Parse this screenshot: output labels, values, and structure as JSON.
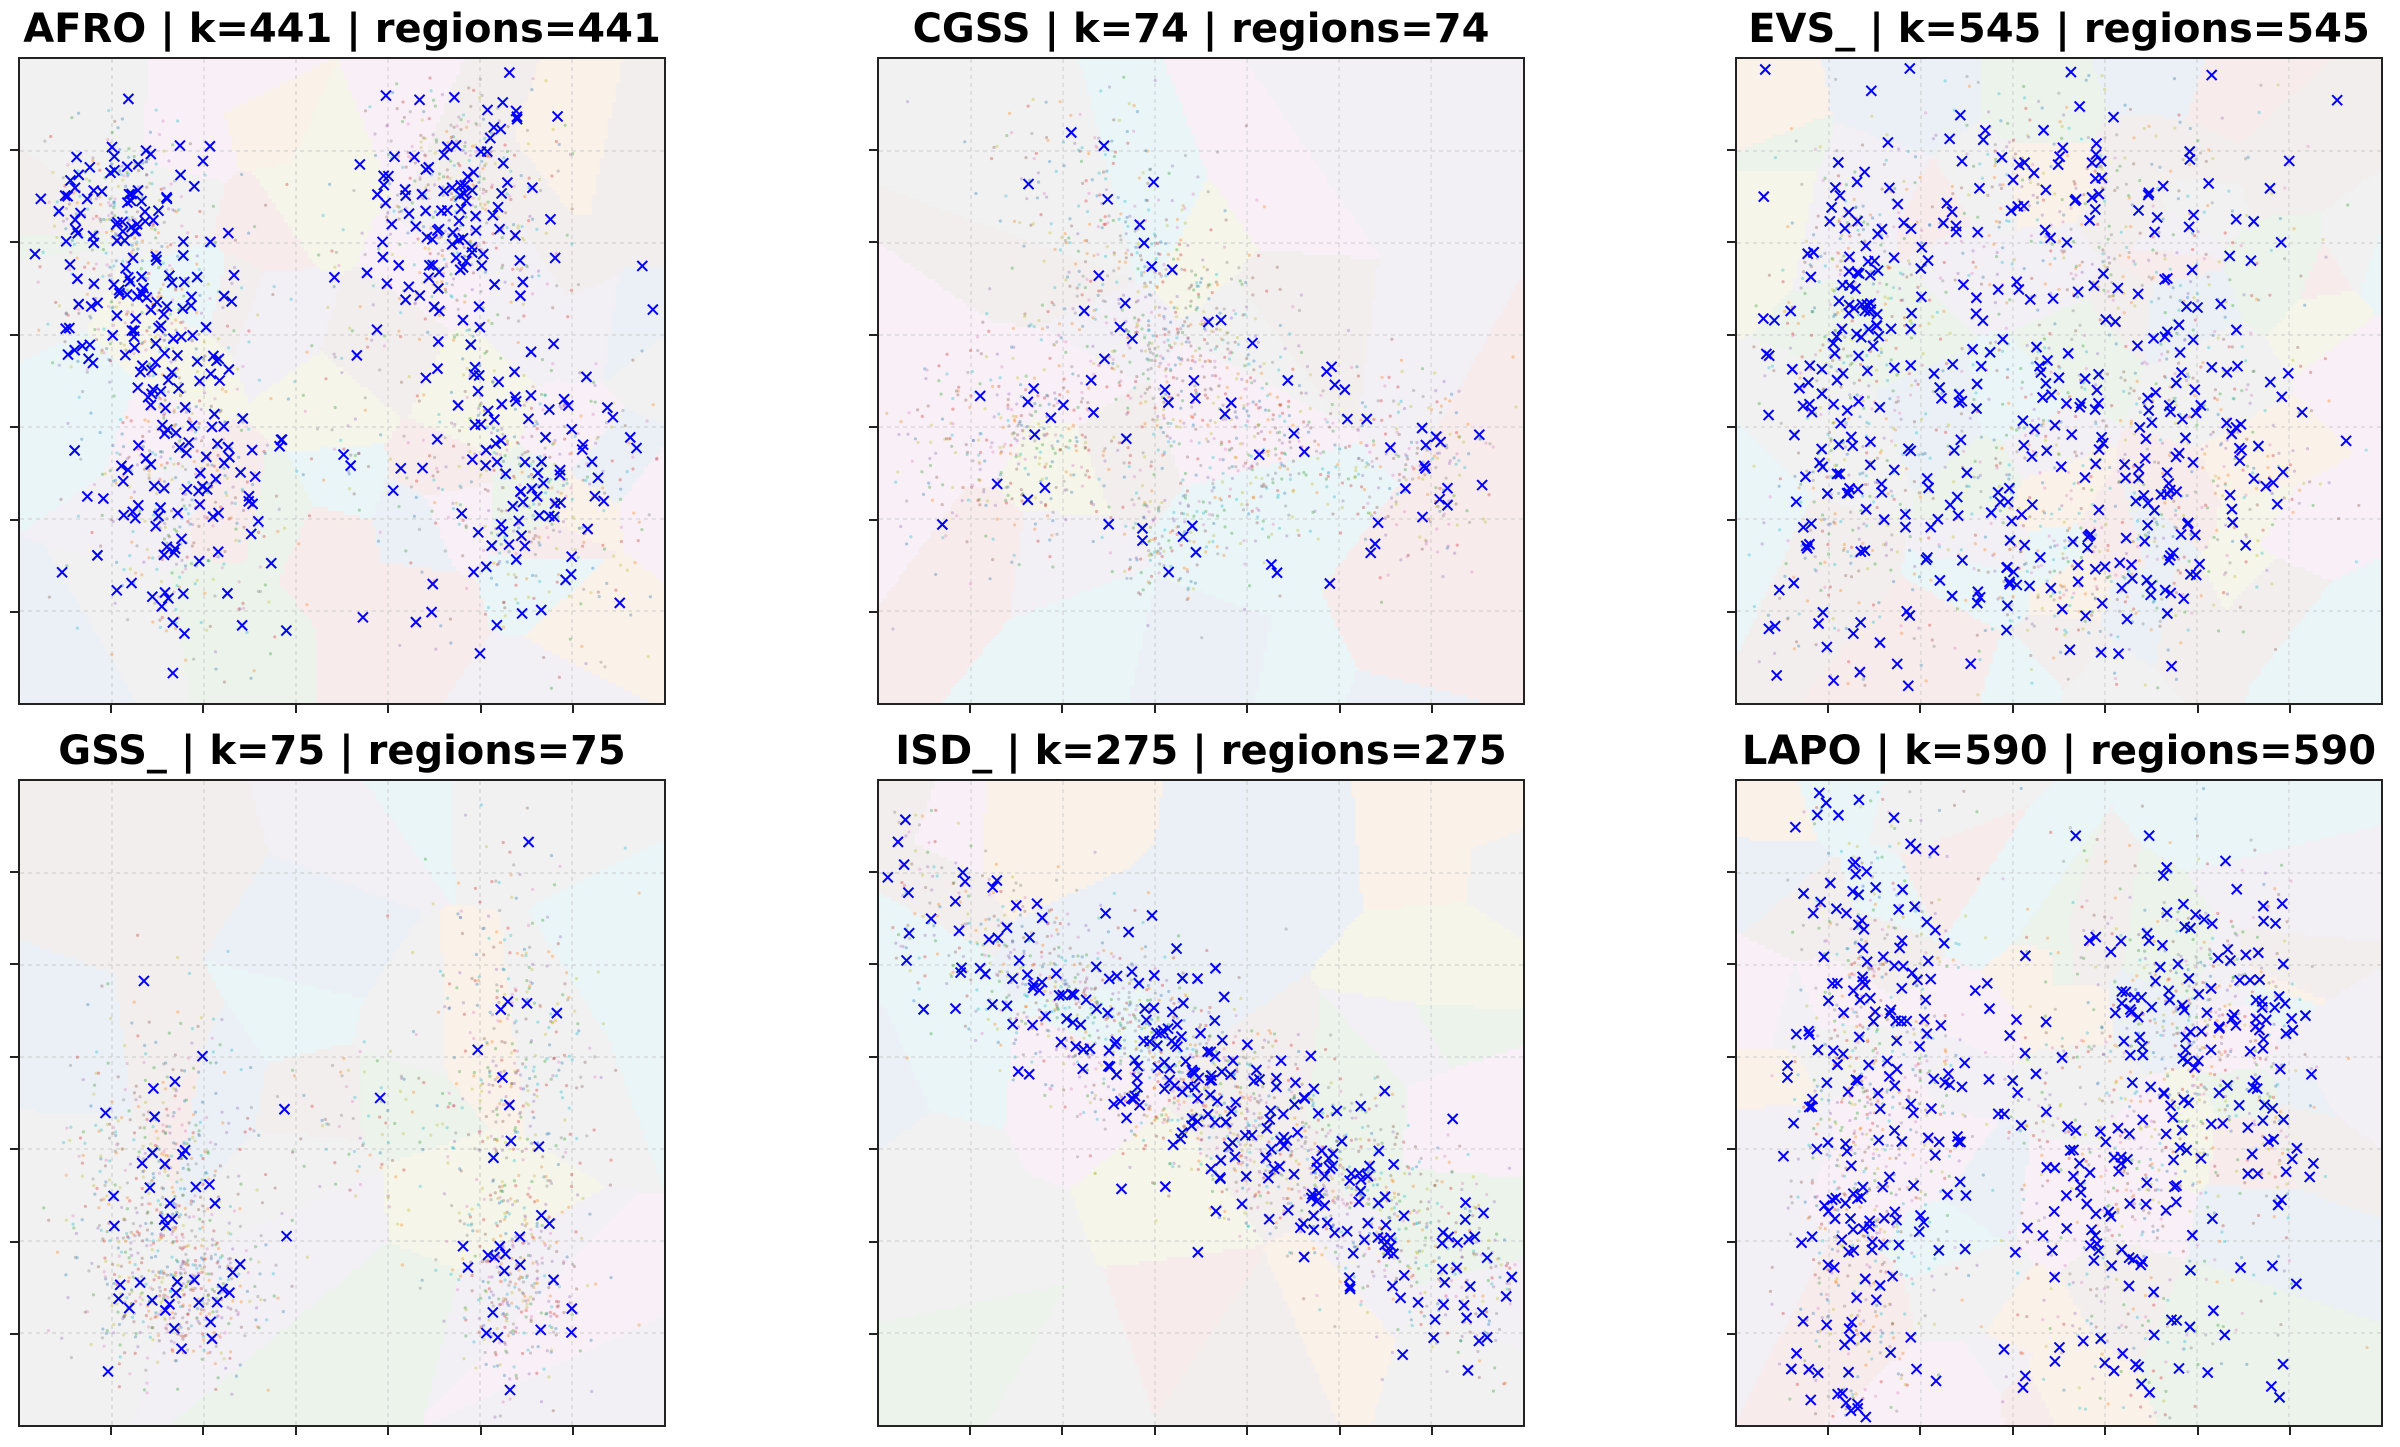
{
  "chart_data": [
    {
      "type": "scatter",
      "title": "AFRO | k=441 | regions=441",
      "dataset": "AFRO",
      "k": 441,
      "regions": 441,
      "grid": true,
      "centroid_color": "#0000ff",
      "centroid_marker": "x"
    },
    {
      "type": "scatter",
      "title": "CGSS | k=74 | regions=74",
      "dataset": "CGSS",
      "k": 74,
      "regions": 74,
      "grid": true,
      "centroid_color": "#0000ff",
      "centroid_marker": "x"
    },
    {
      "type": "scatter",
      "title": "EVS_ | k=545 | regions=545",
      "dataset": "EVS_",
      "k": 545,
      "regions": 545,
      "grid": true,
      "centroid_color": "#0000ff",
      "centroid_marker": "x"
    },
    {
      "type": "scatter",
      "title": "GSS_ | k=75 | regions=75",
      "dataset": "GSS_",
      "k": 75,
      "regions": 75,
      "grid": true,
      "centroid_color": "#0000ff",
      "centroid_marker": "x"
    },
    {
      "type": "scatter",
      "title": "ISD_ | k=275 | regions=275",
      "dataset": "ISD_",
      "k": 275,
      "regions": 275,
      "grid": true,
      "centroid_color": "#0000ff",
      "centroid_marker": "x"
    },
    {
      "type": "scatter",
      "title": "LAPO | k=590 | regions=590",
      "dataset": "LAPO",
      "k": 590,
      "regions": 590,
      "grid": true,
      "centroid_color": "#0000ff",
      "centroid_marker": "x"
    }
  ]
}
